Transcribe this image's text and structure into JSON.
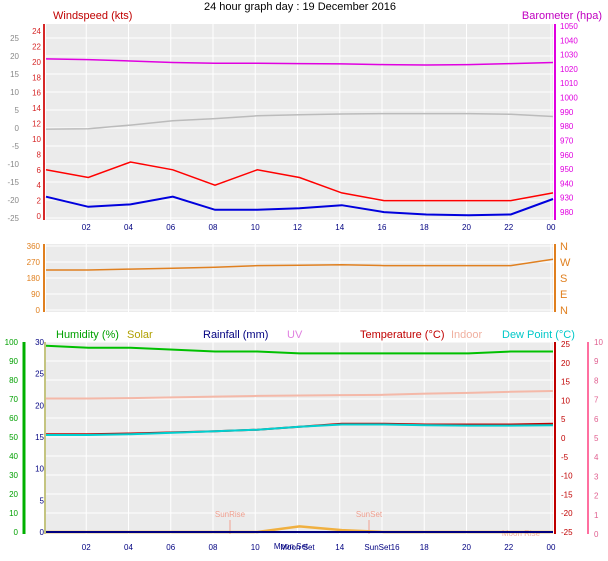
{
  "page": {
    "title": "24 hour graph day : 19 December 2016"
  },
  "x_ticks": [
    "02",
    "04",
    "06",
    "08",
    "10",
    "12",
    "14",
    "16",
    "18",
    "20",
    "22",
    "00"
  ],
  "chart_data": [
    {
      "type": "line",
      "title": "",
      "labels": {
        "left": "Windspeed (kts)",
        "right": "Barometer (hpa)"
      },
      "outer_left_ticks": [
        "25",
        "20",
        "15",
        "10",
        "5",
        "0",
        "-5",
        "-10",
        "-15",
        "-20",
        "-25"
      ],
      "windspeed_ticks": [
        "24",
        "22",
        "20",
        "18",
        "16",
        "14",
        "12",
        "10",
        "8",
        "6",
        "4",
        "2",
        "0"
      ],
      "barometer_ticks": [
        "1050",
        "1040",
        "1030",
        "1020",
        "1010",
        "1000",
        "990",
        "980",
        "970",
        "960",
        "950",
        "940",
        "930",
        "980"
      ],
      "x": [
        "00:00",
        "02:00",
        "04:00",
        "06:00",
        "08:00",
        "10:00",
        "12:00",
        "14:00",
        "16:00",
        "18:00",
        "20:00",
        "22:00",
        "24:00"
      ],
      "series": [
        {
          "name": "Barometer (hpa)",
          "color": "#e000e0",
          "unit_scale": "outer_left",
          "values": [
            19.2,
            19.0,
            18.6,
            18.2,
            18.0,
            18.0,
            17.9,
            17.8,
            17.6,
            17.5,
            17.6,
            17.9,
            18.2
          ]
        },
        {
          "name": "pressure trace (grey)",
          "color": "#bbbbbb",
          "unit_scale": "outer_left",
          "values": [
            -0.3,
            -0.2,
            0.8,
            2.0,
            2.6,
            3.4,
            3.7,
            3.9,
            4.0,
            4.0,
            4.0,
            3.8,
            3.2
          ]
        },
        {
          "name": "Windspeed gust",
          "color": "#ff0000",
          "unit_scale": "windspeed",
          "values": [
            6,
            5,
            7,
            6,
            4,
            6,
            5,
            3,
            2,
            2,
            2,
            2,
            3
          ]
        },
        {
          "name": "Windspeed average",
          "color": "#0000dd",
          "unit_scale": "windspeed",
          "values": [
            2.5,
            1.2,
            1.5,
            2.5,
            0.8,
            0.8,
            1.0,
            1.4,
            0.5,
            0.2,
            0.1,
            0.2,
            2.2
          ]
        }
      ]
    },
    {
      "type": "line",
      "title": "",
      "left_ticks": [
        "360",
        "270",
        "180",
        "90",
        "0"
      ],
      "right_ticks": [
        "N",
        "W",
        "S",
        "E",
        "N"
      ],
      "x": [
        "00:00",
        "02:00",
        "04:00",
        "06:00",
        "08:00",
        "10:00",
        "12:00",
        "14:00",
        "16:00",
        "18:00",
        "20:00",
        "22:00",
        "24:00"
      ],
      "series": [
        {
          "name": "Wind direction",
          "color": "#e08020",
          "values": [
            225,
            225,
            230,
            235,
            240,
            250,
            252,
            255,
            250,
            250,
            250,
            250,
            285
          ]
        }
      ]
    },
    {
      "type": "line",
      "title": "",
      "labels": {
        "humidity": "Humidity (%)",
        "solar": "Solar",
        "rainfall": "Rainfall (mm)",
        "uv": "UV",
        "temperature": "Temperature (°C)",
        "indoor": "Indoor",
        "dewpoint": "Dew Point (°C)"
      },
      "humidity_ticks": [
        "100",
        "90",
        "80",
        "70",
        "60",
        "50",
        "40",
        "30",
        "20",
        "10",
        "0"
      ],
      "rainfall_ticks": [
        "30",
        "25",
        "20",
        "15",
        "10",
        "5",
        "0"
      ],
      "temperature_ticks": [
        "25",
        "20",
        "15",
        "10",
        "5",
        "0",
        "-5",
        "-10",
        "-15",
        "-20",
        "-25"
      ],
      "uv_ticks": [
        "10",
        "9",
        "8",
        "7",
        "6",
        "5",
        "4",
        "3",
        "2",
        "1",
        "0"
      ],
      "annotations": [
        "SunRise",
        "SunSet",
        "Moon Set",
        "Moon Rise"
      ],
      "x_tick_labels": [
        "02",
        "04",
        "06",
        "08",
        "10",
        "Moon Set",
        "14",
        "SunSet16",
        "18",
        "20",
        "22",
        "00"
      ],
      "x": [
        "00:00",
        "02:00",
        "04:00",
        "06:00",
        "08:00",
        "10:00",
        "12:00",
        "14:00",
        "16:00",
        "18:00",
        "20:00",
        "22:00",
        "24:00"
      ],
      "series": [
        {
          "name": "Humidity (%)",
          "color": "#00c000",
          "unit_scale": "humidity",
          "values": [
            98,
            97,
            97,
            96,
            95,
            95,
            94,
            94,
            94,
            94,
            94,
            95,
            95
          ]
        },
        {
          "name": "Indoor",
          "color": "#f4b8a8",
          "unit_scale": "temperature",
          "values": [
            10.5,
            10.5,
            10.6,
            10.8,
            11.0,
            11.2,
            11.3,
            11.4,
            11.5,
            11.8,
            12.0,
            12.3,
            12.5
          ]
        },
        {
          "name": "Temperature (°C)",
          "color": "#c00000",
          "unit_scale": "temperature",
          "values": [
            1.0,
            1.0,
            1.2,
            1.5,
            1.8,
            2.2,
            3.0,
            3.8,
            3.8,
            3.6,
            3.6,
            3.6,
            3.8
          ]
        },
        {
          "name": "Dew Point (°C)",
          "color": "#00d0d0",
          "unit_scale": "temperature",
          "values": [
            0.8,
            0.8,
            1.0,
            1.4,
            1.8,
            2.2,
            3.0,
            3.6,
            3.6,
            3.4,
            3.3,
            3.3,
            3.4
          ]
        },
        {
          "name": "Solar",
          "color": "#f0b040",
          "unit_scale": "temperature",
          "values": [
            -25,
            -25,
            -25,
            -25,
            -25,
            -25,
            -23.5,
            -24.5,
            -25,
            -25,
            -25,
            -25,
            -25
          ]
        },
        {
          "name": "Rainfall (mm)",
          "color": "#000080",
          "unit_scale": "rainfall",
          "values": [
            0,
            0,
            0,
            0,
            0,
            0,
            0,
            0,
            0,
            0,
            0,
            0,
            0
          ]
        }
      ]
    }
  ],
  "colors": {
    "plot_bg": "#ebebeb",
    "grid": "#ffffff",
    "axis_left_p1": "#d62828",
    "axis_right_p1": "#e000e0",
    "axis_left_p3": "#00b000",
    "axis_left_p3_inner": "#8a8a00",
    "axis_right_p3": "#ff6fa0"
  }
}
